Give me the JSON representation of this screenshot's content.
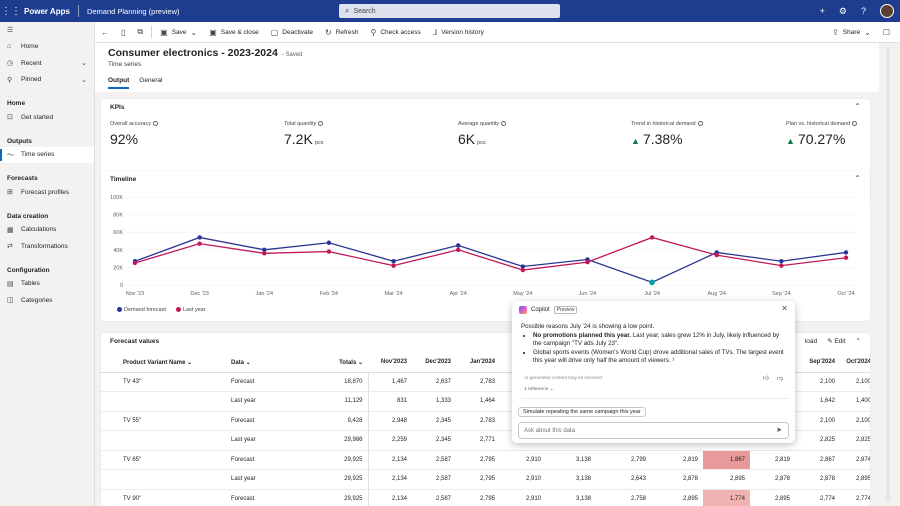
{
  "topbar": {
    "app_name": "Power Apps",
    "app_title": "Demand Planning (preview)",
    "search_placeholder": "Search"
  },
  "commands": {
    "save": "Save",
    "save_close": "Save & close",
    "deactivate": "Deactivate",
    "refresh": "Refresh",
    "check_access": "Check access",
    "version_history": "Version history",
    "share": "Share"
  },
  "sidebar": {
    "home": "Home",
    "recent": "Recent",
    "pinned": "Pinned",
    "sections": {
      "home": "Home",
      "outputs": "Outputs",
      "forecasts": "Forecasts",
      "data_creation": "Data creation",
      "configuration": "Configuration"
    },
    "items": {
      "get_started": "Get started",
      "time_series": "Time series",
      "forecast_profiles": "Forecast profiles",
      "calculations": "Calculations",
      "transformations": "Transformations",
      "tables": "Tables",
      "categories": "Categories"
    }
  },
  "record": {
    "title": "Consumer electronics - 2023-2024",
    "saved": "- Saved",
    "subtitle": "Time series",
    "tabs": [
      "Output",
      "General"
    ]
  },
  "kpis": {
    "title": "KPIs",
    "items": [
      {
        "label": "Overall accuracy",
        "value": "92%",
        "unit": "",
        "trend": false
      },
      {
        "label": "Total quantity",
        "value": "7.2K",
        "unit": "pcs",
        "trend": false
      },
      {
        "label": "Average quantity",
        "value": "6K",
        "unit": "pcs",
        "trend": false
      },
      {
        "label": "Trend in historical demand",
        "value": "7.38%",
        "unit": "",
        "trend": true
      },
      {
        "label": "Plan vs. historical demand",
        "value": "70.27%",
        "unit": "",
        "trend": true
      }
    ]
  },
  "timeline": {
    "title": "Timeline",
    "chart_data": {
      "type": "line",
      "x": [
        "Nov '23",
        "Dec '23",
        "Jan '24",
        "Feb '24",
        "Mar '24",
        "Apr '24",
        "May '24",
        "Jun '24",
        "Jul '24",
        "Aug '24",
        "Sep '24",
        "Oct '24"
      ],
      "ylim": [
        0,
        100000
      ],
      "yticks": [
        "0",
        "20K",
        "40K",
        "60K",
        "80K",
        "100K"
      ],
      "series": [
        {
          "name": "Demand forecast",
          "color": "#283593",
          "values": [
            27000,
            54000,
            40000,
            48000,
            27000,
            45000,
            21000,
            29000,
            3000,
            37000,
            27000,
            37000
          ]
        },
        {
          "name": "Last year",
          "color": "#c2185b",
          "values": [
            25000,
            47000,
            36000,
            38000,
            22000,
            40000,
            17000,
            26000,
            54000,
            34000,
            22000,
            31000
          ]
        }
      ]
    }
  },
  "forecast": {
    "title": "Forecast values",
    "toolbar_load": "load",
    "toolbar_edit": "Edit",
    "columns": [
      "Product Variant Name",
      "Data",
      "Totals",
      "Nov'2023",
      "Dec'2023",
      "Jan'2024",
      "",
      "",
      "",
      "",
      "",
      "",
      "Sep'2024",
      "Oct'2024"
    ],
    "rows": [
      {
        "product": "TV 43\"",
        "data": "Forecast",
        "vals": [
          "18,870",
          "1,467",
          "2,637",
          "2,783",
          "",
          "",
          "",
          "",
          "",
          "",
          "2,100",
          "2,100"
        ]
      },
      {
        "product": "",
        "data": "Last year",
        "vals": [
          "11,129",
          "831",
          "1,333",
          "1,464",
          "",
          "",
          "",
          "",
          "",
          "",
          "1,642",
          "1,400"
        ]
      },
      {
        "product": "TV 55\"",
        "data": "Forecast",
        "vals": [
          "9,428",
          "2,948",
          "2,345",
          "2,783",
          "",
          "",
          "",
          "",
          "",
          "",
          "2,100",
          "2,100"
        ]
      },
      {
        "product": "",
        "data": "Last year",
        "vals": [
          "29,986",
          "2,259",
          "2,345",
          "2,771",
          "",
          "",
          "",
          "",
          "",
          "",
          "2,825",
          "2,825"
        ]
      },
      {
        "product": "TV 65\"",
        "data": "Forecast",
        "vals": [
          "29,925",
          "2,134",
          "2,587",
          "2,795",
          "2,910",
          "3,138",
          "2,799",
          "2,819",
          "1,867",
          "2,819",
          "2,867",
          "2,874"
        ]
      },
      {
        "product": "",
        "data": "Last year",
        "vals": [
          "29,925",
          "2,134",
          "2,587",
          "2,795",
          "2,910",
          "3,138",
          "2,643",
          "2,878",
          "2,895",
          "2,878",
          "2,878",
          "2,895"
        ]
      },
      {
        "product": "TV 90\"",
        "data": "Forecast",
        "vals": [
          "29,925",
          "2,134",
          "2,587",
          "2,795",
          "2,910",
          "3,138",
          "2,758",
          "2,895",
          "1,774",
          "2,895",
          "2,774",
          "2,774"
        ]
      }
    ]
  },
  "copilot": {
    "title": "Copilot",
    "badge": "Preview",
    "intro": "Possible reasons July '24 is showing a low point.",
    "bullet1_bold": "No promotions planned this year.",
    "bullet1_rest": " Last year, sales grew 12% in July, likely influenced by the campaign \"TV ads July 23\".",
    "bullet2": "Global sports events (Women's World Cup) drove additional sales of TVs. The largest event this year will drive only half the amount of viewers. ¹",
    "disclaimer": "AI-generated content may be incorrect",
    "references": "1 reference",
    "suggestion": "Simulate repeating the same campaign this year",
    "input_placeholder": "Ask about this data"
  }
}
